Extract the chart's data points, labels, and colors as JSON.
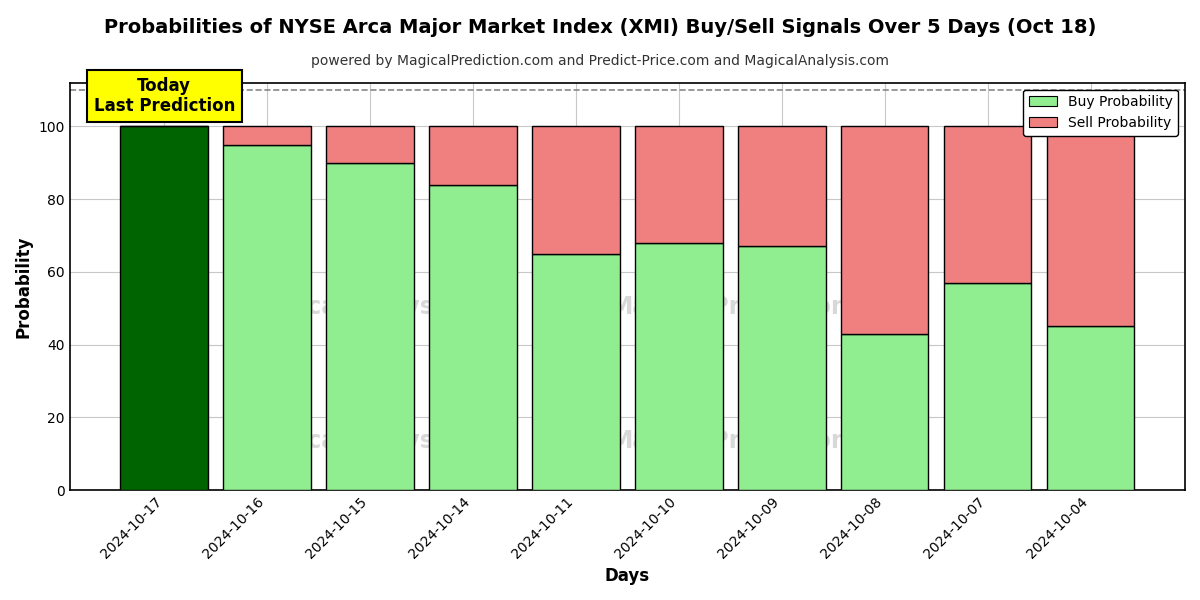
{
  "title": "Probabilities of NYSE Arca Major Market Index (XMI) Buy/Sell Signals Over 5 Days (Oct 18)",
  "subtitle": "powered by MagicalPrediction.com and Predict-Price.com and MagicalAnalysis.com",
  "xlabel": "Days",
  "ylabel": "Probability",
  "categories": [
    "2024-10-17",
    "2024-10-16",
    "2024-10-15",
    "2024-10-14",
    "2024-10-11",
    "2024-10-10",
    "2024-10-09",
    "2024-10-08",
    "2024-10-07",
    "2024-10-04"
  ],
  "buy_values": [
    100,
    95,
    90,
    84,
    65,
    68,
    67,
    43,
    57,
    45
  ],
  "sell_values": [
    0,
    5,
    10,
    16,
    35,
    32,
    33,
    57,
    43,
    55
  ],
  "today_bar_color": "#006400",
  "buy_color": "#90EE90",
  "sell_color": "#F08080",
  "today_annotation_bg": "#FFFF00",
  "today_annotation_text": "Today\nLast Prediction",
  "legend_buy_label": "Buy Probability",
  "legend_sell_label": "Sell Probability",
  "ylim": [
    0,
    112
  ],
  "yticks": [
    0,
    20,
    40,
    60,
    80,
    100
  ],
  "dashed_line_y": 110,
  "bar_width": 0.85,
  "bar_edgecolor": "#000000",
  "grid_color": "#c8c8c8",
  "bg_color": "#ffffff",
  "watermark_color": "#d8d8d8",
  "title_fontsize": 14,
  "subtitle_fontsize": 10,
  "axis_label_fontsize": 12,
  "tick_fontsize": 10
}
